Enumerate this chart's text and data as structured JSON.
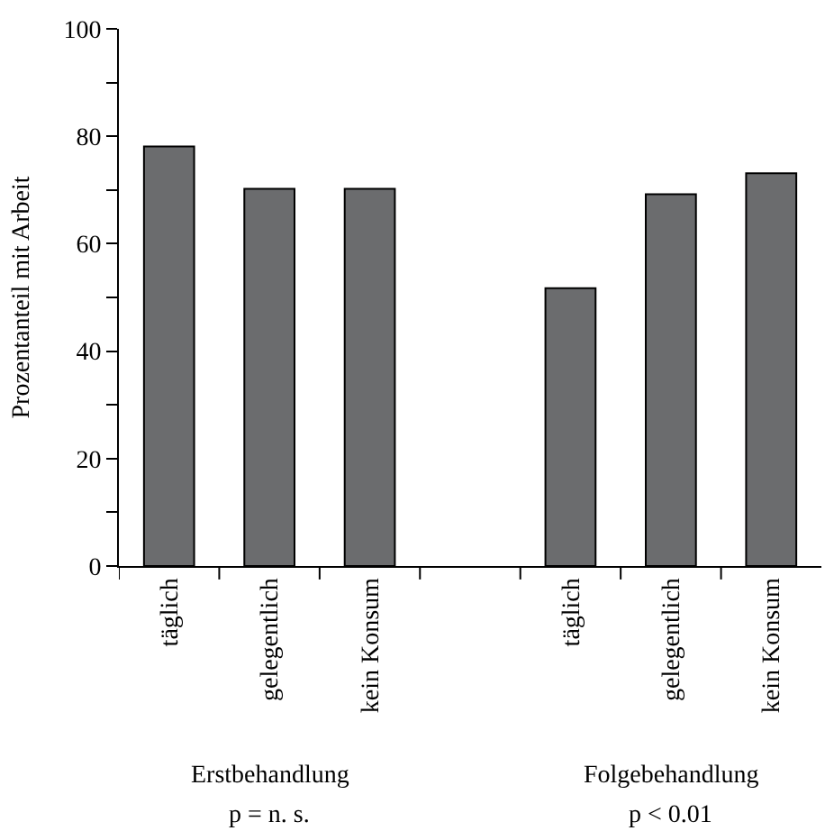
{
  "chart_data": {
    "type": "bar",
    "ylabel": "Prozentanteil mit Arbeit",
    "categories": [
      "täglich",
      "gelegentlich",
      "kein Konsum",
      null,
      "täglich",
      "gelegentlich",
      "kein Konsum"
    ],
    "values": [
      78.1,
      70.2,
      70.2,
      null,
      51.7,
      69.2,
      73.1
    ],
    "color": "#6b6c6e",
    "ylim": [
      0,
      100
    ],
    "yticks": [
      0,
      {
        "value": 10,
        "label": null
      },
      20,
      {
        "value": 30,
        "label": null
      },
      40,
      {
        "value": 50,
        "label": null
      },
      60,
      {
        "value": 70,
        "label": null
      },
      80,
      {
        "value": 90,
        "label": null
      },
      100
    ],
    "annotations": [
      "Erstbehandlung",
      "Folgebehandlung",
      "p = n. s.",
      "p < 0.01"
    ]
  }
}
